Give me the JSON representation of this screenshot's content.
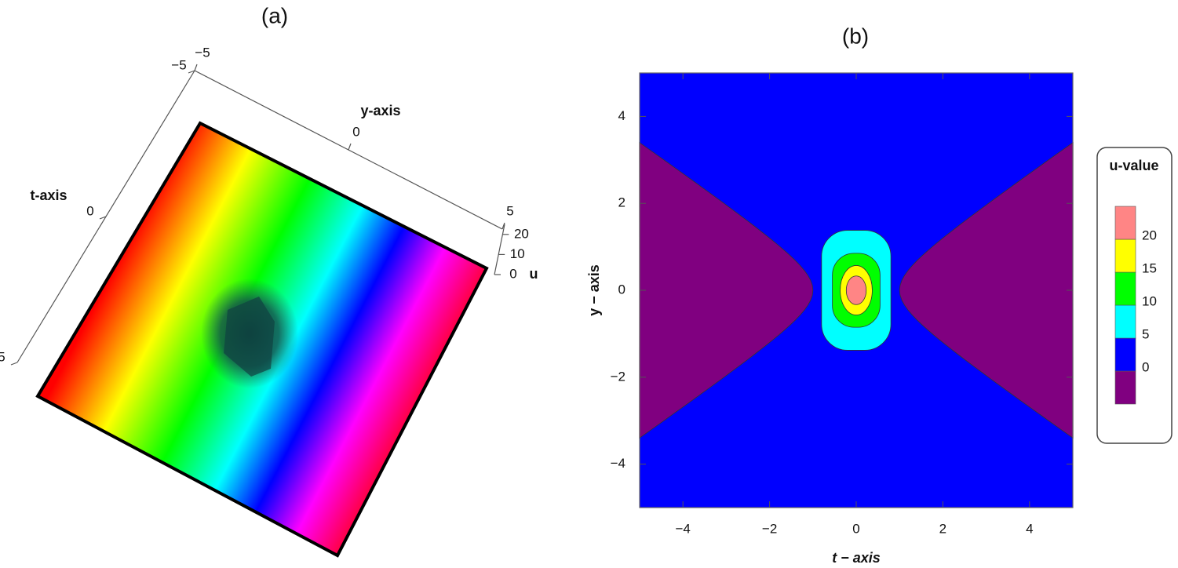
{
  "chart_data": [
    {
      "type": "surface3d",
      "title": "(a)",
      "xlabel": "t-axis",
      "ylabel": "y-axis",
      "zlabel": "u",
      "xlim": [
        -5,
        5
      ],
      "xticks": [
        {
          "value": -5,
          "label": "−5"
        },
        0,
        5
      ],
      "ylim": [
        -5,
        5
      ],
      "yticks": [
        {
          "value": -5,
          "label": "−5"
        },
        0,
        5
      ],
      "zlim": [
        0,
        25
      ],
      "zticks": [
        0,
        10,
        20
      ]
    },
    {
      "type": "contour",
      "title": "(b)",
      "xlabel": "t − axis",
      "ylabel": "y − axis",
      "xlim": [
        -5,
        5
      ],
      "ylim": [
        -5,
        5
      ],
      "xticks": [
        {
          "value": -4,
          "label": "−4"
        },
        {
          "value": -2,
          "label": "−2"
        },
        0,
        2,
        4
      ],
      "yticks": [
        {
          "value": -4,
          "label": "−4"
        },
        {
          "value": -2,
          "label": "−2"
        },
        0,
        2,
        4
      ],
      "legend_title": "u-value",
      "levels": [
        0,
        5,
        10,
        15,
        20
      ],
      "colors": [
        "#800080",
        "#0000ff",
        "#00ffff",
        "#00ff00",
        "#ffff00",
        "#ff8585"
      ]
    }
  ]
}
